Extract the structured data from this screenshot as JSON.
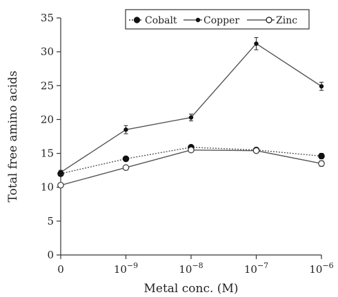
{
  "chart_data": {
    "type": "line",
    "title": "",
    "xlabel": "Metal conc. (M)",
    "ylabel": "Total free amino acids",
    "categories": [
      {
        "base": "0",
        "exp": ""
      },
      {
        "base": "10",
        "exp": "−9"
      },
      {
        "base": "10",
        "exp": "−8"
      },
      {
        "base": "10",
        "exp": "−7"
      },
      {
        "base": "10",
        "exp": "−6"
      }
    ],
    "ylim": [
      0,
      35
    ],
    "yticks": [
      0,
      5,
      10,
      15,
      20,
      25,
      30,
      35
    ],
    "grid": false,
    "legend_position": "top-right",
    "series": [
      {
        "name": "Cobalt",
        "values": [
          12.0,
          14.2,
          15.9,
          15.5,
          14.6
        ],
        "errors": [
          0.3,
          0.3,
          0.3,
          0.3,
          0.4
        ],
        "marker": "filled-circle",
        "line_style": "dotted",
        "color": "#333333"
      },
      {
        "name": "Copper",
        "values": [
          12.2,
          18.5,
          20.3,
          31.2,
          24.9
        ],
        "errors": [
          0.3,
          0.6,
          0.5,
          0.9,
          0.6
        ],
        "marker": "filled-dot",
        "line_style": "solid",
        "color": "#555555"
      },
      {
        "name": "Zinc",
        "values": [
          10.3,
          12.9,
          15.5,
          15.4,
          13.5
        ],
        "errors": [
          0.3,
          0.3,
          0.3,
          0.3,
          0.4
        ],
        "marker": "open-circle",
        "line_style": "solid",
        "color": "#555555"
      }
    ]
  }
}
